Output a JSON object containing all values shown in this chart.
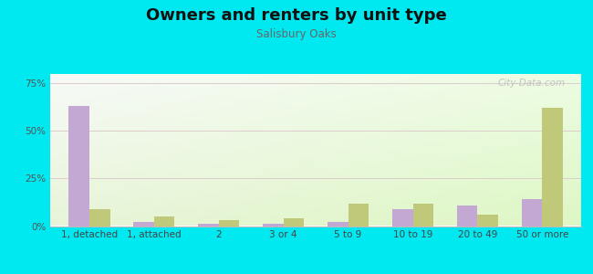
{
  "title": "Owners and renters by unit type",
  "subtitle": "Salisbury Oaks",
  "categories": [
    "1, detached",
    "1, attached",
    "2",
    "3 or 4",
    "5 to 9",
    "10 to 19",
    "20 to 49",
    "50 or more"
  ],
  "owner_values": [
    63,
    2,
    1,
    1,
    2,
    9,
    11,
    14
  ],
  "renter_values": [
    9,
    5,
    3,
    4,
    12,
    12,
    6,
    62
  ],
  "owner_color": "#c4a8d4",
  "renter_color": "#c0c87a",
  "background_outer": "#00e8f0",
  "ylim": [
    0,
    80
  ],
  "yticks": [
    0,
    25,
    50,
    75
  ],
  "ytick_labels": [
    "0%",
    "25%",
    "50%",
    "75%"
  ],
  "title_fontsize": 13,
  "subtitle_fontsize": 8.5,
  "tick_fontsize": 7.5,
  "legend_fontsize": 8.5,
  "watermark": "City-Data.com"
}
